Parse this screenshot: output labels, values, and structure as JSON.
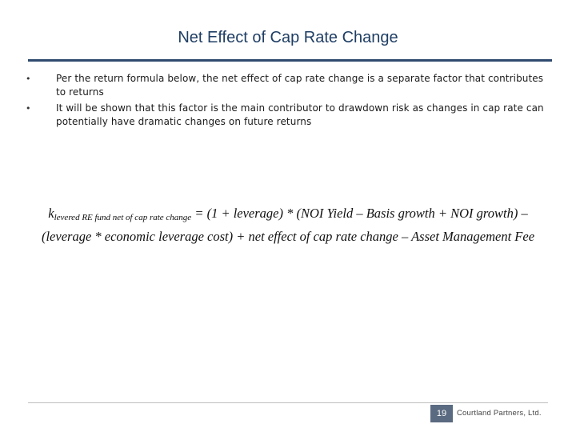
{
  "slide": {
    "title": "Net Effect of Cap Rate Change",
    "bullets": [
      "Per the return formula below, the net effect of cap rate change is a separate factor that contributes to returns",
      "It will be shown that this factor is the main contributor to drawdown risk as changes in cap rate can potentially have dramatic changes on future returns"
    ],
    "formula": {
      "symbol": "k",
      "subscript": "levered RE fund net of cap rate change",
      "body": " = (1 + leverage) * (NOI Yield – Basis growth + NOI growth) – (leverage * economic leverage cost) + net effect of cap rate change – Asset Management Fee"
    }
  },
  "footer": {
    "page_number": "19",
    "company": "Courtland Partners, Ltd."
  }
}
